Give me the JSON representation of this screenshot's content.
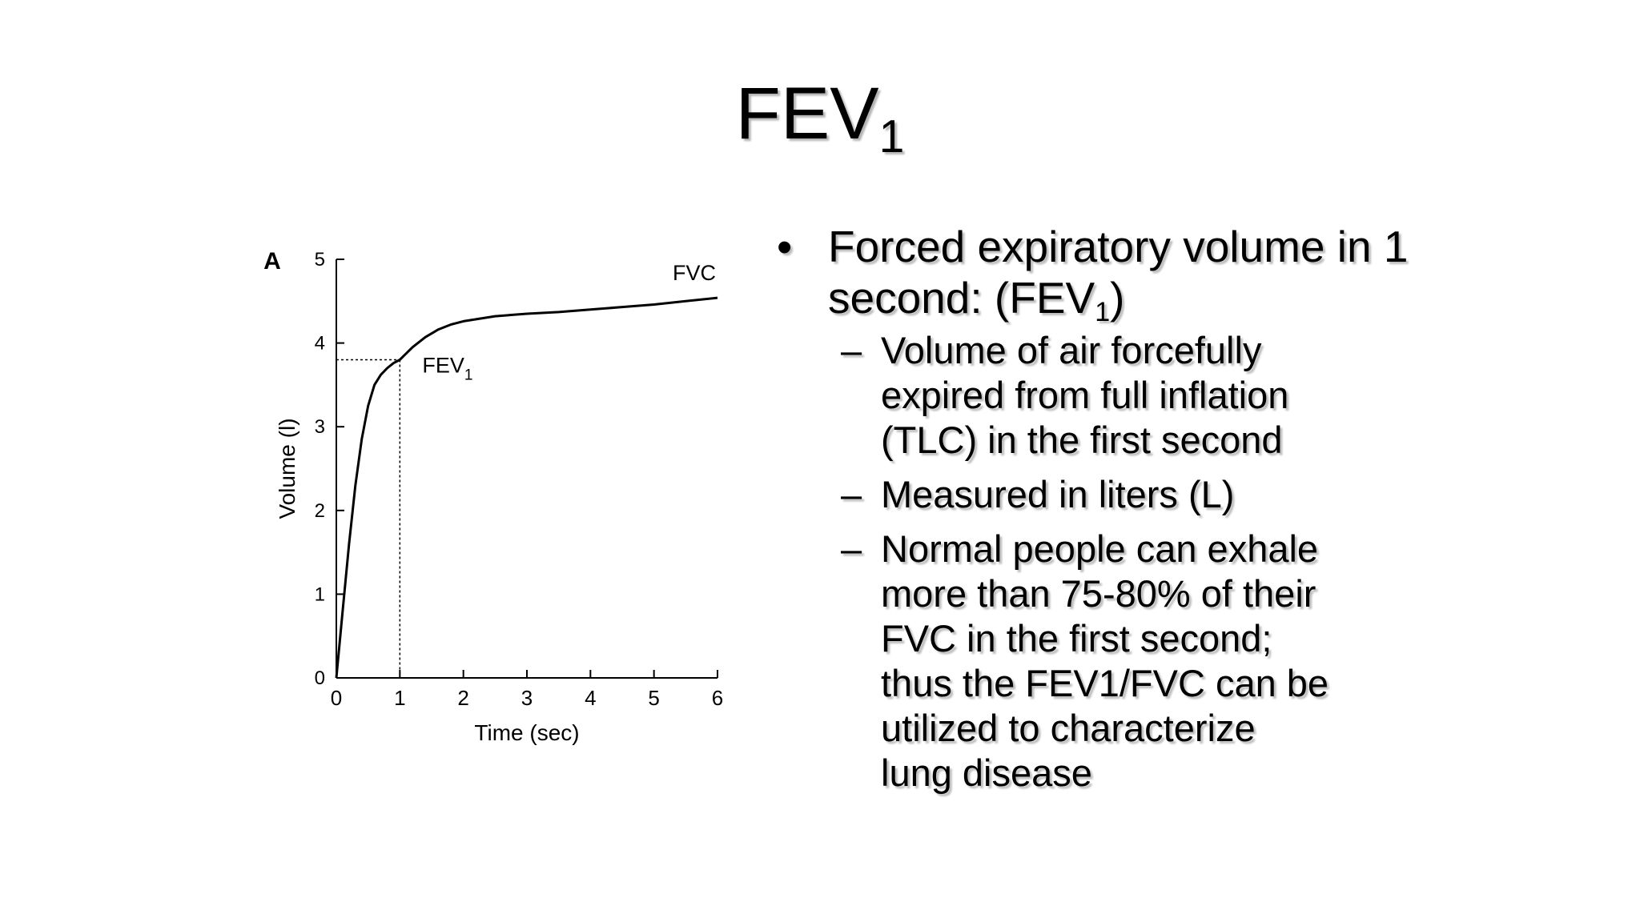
{
  "slide": {
    "title_main": "FEV",
    "title_sub": "1"
  },
  "bullets": {
    "main_marker": "•",
    "main_text_a": "Forced expiratory volume in 1 second: (FEV",
    "main_text_sub": "1",
    "main_text_b": ")",
    "sub_marker": "–",
    "sub_items": [
      "Volume of air forcefully expired from full inflation (TLC) in the first second",
      "Measured in liters (L)",
      "Normal people can exhale more than 75-80% of their FVC in the first second; thus the FEV1/FVC can be utilized to characterize lung disease"
    ]
  },
  "chart_data": {
    "type": "line",
    "panel_label": "A",
    "xlabel": "Time (sec)",
    "ylabel": "Volume (l)",
    "xlim": [
      0,
      6
    ],
    "ylim": [
      0,
      5
    ],
    "x_ticks": [
      "0",
      "1",
      "2",
      "3",
      "4",
      "5",
      "6"
    ],
    "y_ticks": [
      "0",
      "1",
      "2",
      "3",
      "4",
      "5"
    ],
    "grid": false,
    "series": [
      {
        "name": "FVC",
        "x": [
          0,
          0.1,
          0.2,
          0.3,
          0.4,
          0.5,
          0.6,
          0.7,
          0.8,
          0.9,
          1.0,
          1.2,
          1.4,
          1.6,
          1.8,
          2.0,
          2.5,
          3.0,
          3.5,
          4.0,
          4.5,
          5.0,
          5.5,
          6.0
        ],
        "y": [
          0,
          0.8,
          1.6,
          2.3,
          2.85,
          3.25,
          3.5,
          3.62,
          3.7,
          3.76,
          3.8,
          3.95,
          4.07,
          4.16,
          4.22,
          4.26,
          4.32,
          4.35,
          4.37,
          4.4,
          4.43,
          4.46,
          4.5,
          4.54
        ]
      }
    ],
    "annotations": [
      {
        "label_main": "FEV",
        "label_sub": "1",
        "x": 1,
        "y": 3.8
      },
      {
        "label_main": "FVC",
        "x": 6,
        "y": 4.54
      }
    ]
  }
}
